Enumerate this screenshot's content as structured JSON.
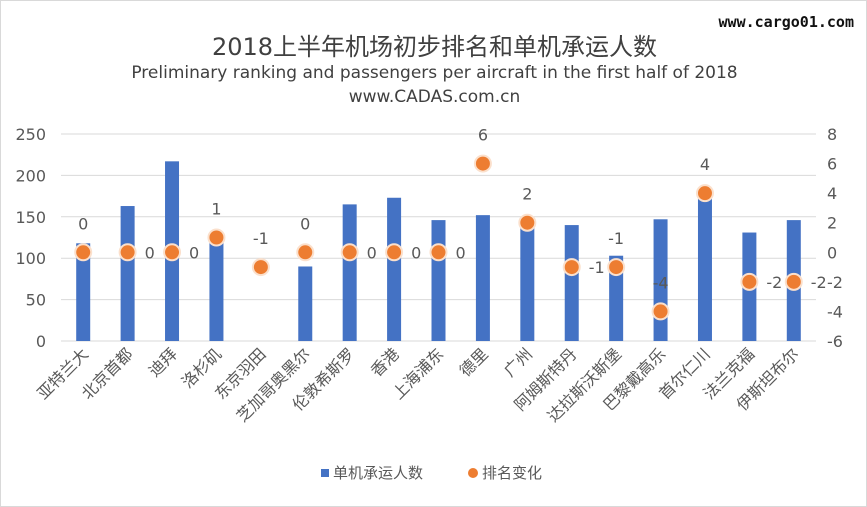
{
  "watermark": "www.cargo01.com",
  "chart_data": {
    "type": "bar",
    "title": "2018上半年机场初步排名和单机承运人数",
    "subtitle": "Preliminary ranking and passengers per aircraft in the first half of 2018",
    "source": "www.CADAS.com.cn",
    "categories": [
      "亚特兰大",
      "北京首都",
      "迪拜",
      "洛杉矶",
      "东京羽田",
      "芝加哥奥黑尔",
      "伦敦希斯罗",
      "香港",
      "上海浦东",
      "德里",
      "广州",
      "阿姆斯特丹",
      "达拉斯沃斯堡",
      "巴黎戴高乐",
      "首尔仁川",
      "法兰克福",
      "伊斯坦布尔"
    ],
    "series": [
      {
        "name": "单机承运人数",
        "type": "bar",
        "axis": "left",
        "color": "#4472c4",
        "values": [
          118,
          163,
          217,
          120,
          0,
          90,
          165,
          173,
          146,
          152,
          138,
          140,
          103,
          147,
          172,
          131,
          146
        ]
      },
      {
        "name": "排名变化",
        "type": "scatter",
        "axis": "right",
        "color": "#ed7d31",
        "values": [
          0,
          0,
          0,
          1,
          -1,
          0,
          0,
          0,
          0,
          6,
          2,
          -1,
          -1,
          -4,
          4,
          -2,
          -2
        ]
      }
    ],
    "ylim_left": [
      0,
      250
    ],
    "yticks_left": [
      0,
      50,
      100,
      150,
      200,
      250
    ],
    "ylim_right": [
      -6,
      8
    ],
    "yticks_right": [
      -6,
      -4,
      -2,
      0,
      2,
      4,
      6,
      8
    ],
    "grid": true,
    "legend": "bottom"
  }
}
